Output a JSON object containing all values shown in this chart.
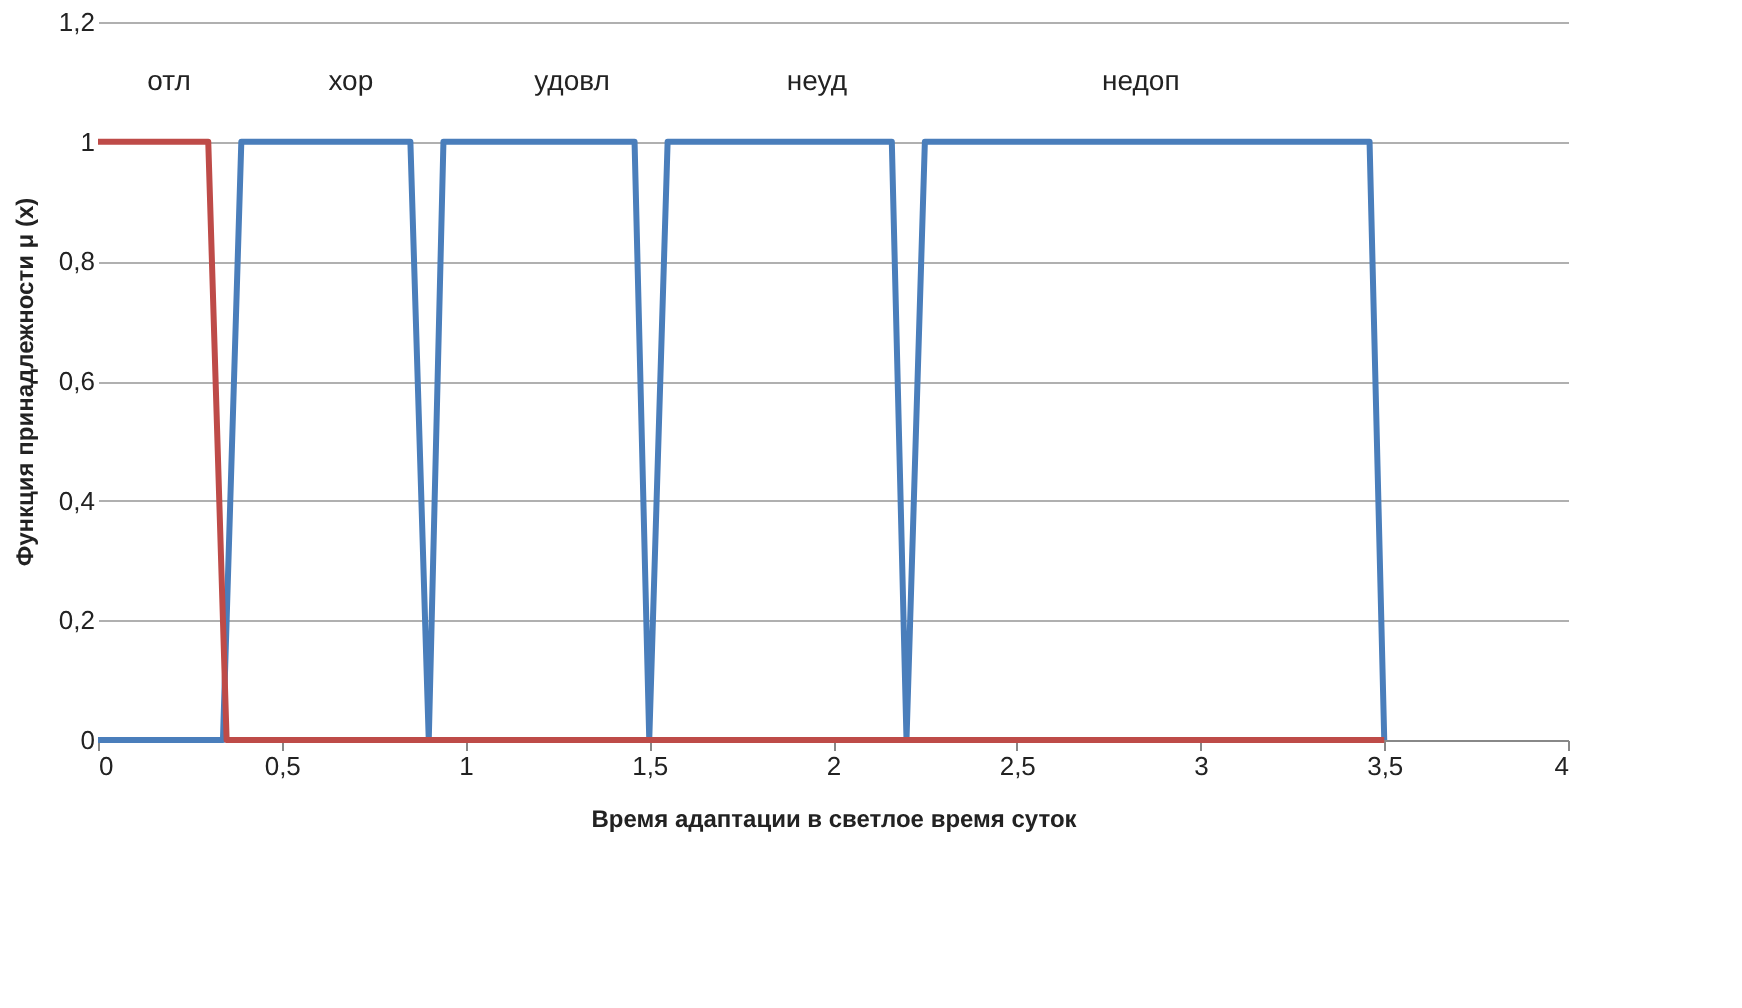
{
  "chart_data": {
    "type": "line",
    "xlabel": "Время адаптации  в светлое время суток",
    "ylabel": "Функция  принадлежности  μ (x)",
    "series": [
      {
        "color": "#4a7ebb",
        "x": [
          0,
          0.34,
          0.39,
          0.85,
          0.9,
          0.94,
          1.46,
          1.5,
          1.55,
          2.16,
          2.2,
          2.25,
          3.46,
          3.5
        ],
        "values": [
          0,
          0,
          1,
          1,
          0,
          1,
          1,
          0,
          1,
          1,
          0,
          1,
          1,
          0
        ]
      },
      {
        "color": "#be4b48",
        "x": [
          0,
          0.3,
          0.35,
          3.5
        ],
        "values": [
          1,
          1,
          0,
          0
        ]
      }
    ],
    "xlim": [
      0,
      4
    ],
    "ylim": [
      0,
      1.2
    ],
    "xticks": [
      0,
      {
        "value": 0.5,
        "label": "0,5"
      },
      1,
      {
        "value": 1.5,
        "label": "1,5"
      },
      2,
      {
        "value": 2.5,
        "label": "2,5"
      },
      3,
      {
        "value": 3.5,
        "label": "3,5"
      },
      4
    ],
    "yticks": [
      0,
      {
        "value": 0.2,
        "label": "0,2"
      },
      {
        "value": 0.4,
        "label": "0,4"
      },
      {
        "value": 0.6,
        "label": "0,6"
      },
      {
        "value": 0.8,
        "label": "0,8"
      },
      1,
      {
        "value": 1.2,
        "label": "1,2"
      }
    ],
    "grid": "y",
    "marker": "none",
    "line_style": "solid",
    "annotations": [
      "отл",
      "хор",
      "удовл",
      "неуд",
      "недоп"
    ]
  }
}
